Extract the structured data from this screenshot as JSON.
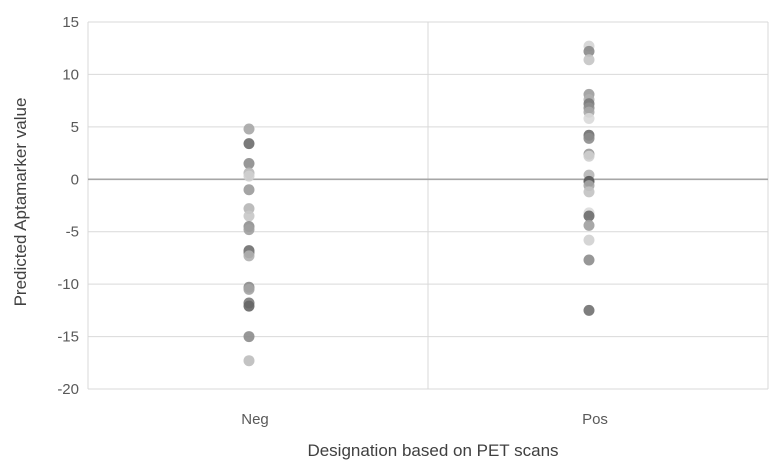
{
  "chart_data": {
    "type": "scatter",
    "title": "",
    "xlabel": "Designation based on PET scans",
    "ylabel": "Predicted Aptamarker value",
    "categories": [
      "Neg",
      "Pos"
    ],
    "ylim": [
      -20,
      15
    ],
    "yticks": [
      "15",
      "10",
      "5",
      "0",
      "-5",
      "-10",
      "-15",
      "-20"
    ],
    "grid": true,
    "legend": "none",
    "series": [
      {
        "category": "Neg",
        "values": [
          4.8,
          3.4,
          1.5,
          0.6,
          0.3,
          -1.0,
          -2.8,
          -3.5,
          -4.5,
          -4.8,
          -6.8,
          -7.0,
          -7.3,
          -10.3,
          -10.5,
          -11.8,
          -12.1,
          -15.0,
          -17.3
        ],
        "shades": [
          "#a6a6a6",
          "#6b6b6b",
          "#8c8c8c",
          "#b8b8b8",
          "#cfcfcf",
          "#9a9a9a",
          "#b5b5b5",
          "#c6c6c6",
          "#8f8f8f",
          "#a0a0a0",
          "#6e6e6e",
          "#7c7c7c",
          "#b0b0b0",
          "#8a8a8a",
          "#a3a3a3",
          "#7a7a7a",
          "#666666",
          "#8c8c8c",
          "#bdbdbd"
        ]
      },
      {
        "category": "Pos",
        "values": [
          12.7,
          12.2,
          11.4,
          8.1,
          7.6,
          7.2,
          6.8,
          6.4,
          5.8,
          4.2,
          3.9,
          2.4,
          2.2,
          0.4,
          -0.2,
          -0.6,
          -1.2,
          -3.2,
          -3.5,
          -4.4,
          -5.8,
          -7.7,
          -12.5
        ],
        "shades": [
          "#d4d4d4",
          "#8a8a8a",
          "#c4c4c4",
          "#9c9c9c",
          "#b0b0b0",
          "#7a7a7a",
          "#8f8f8f",
          "#a8a8a8",
          "#d9d9d9",
          "#6e6e6e",
          "#8c8c8c",
          "#9a9a9a",
          "#cfcfcf",
          "#b5b5b5",
          "#555555",
          "#a6a6a6",
          "#c2c2c2",
          "#dcdcdc",
          "#6b6b6b",
          "#9e9e9e",
          "#d0d0d0",
          "#8c8c8c",
          "#707070"
        ]
      }
    ]
  }
}
